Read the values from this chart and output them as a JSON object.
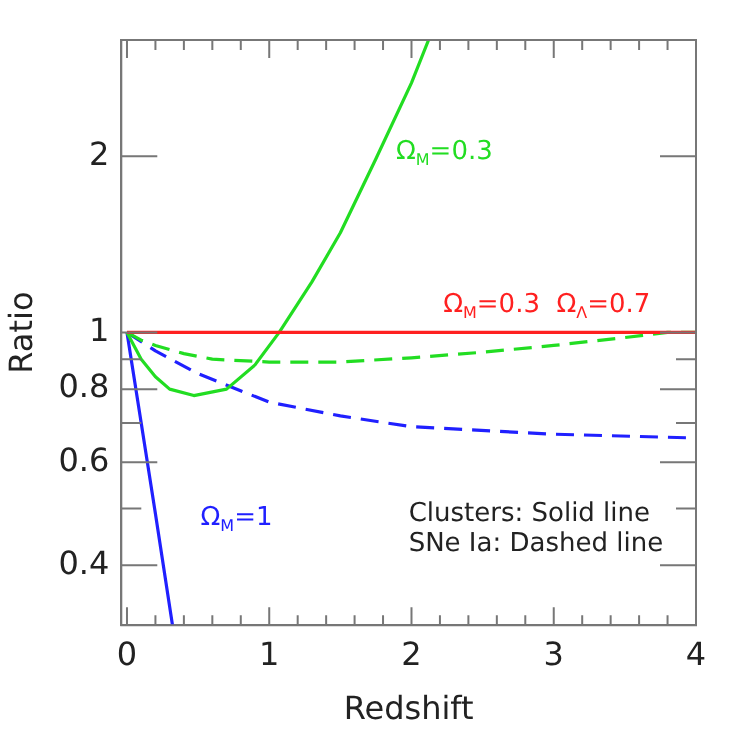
{
  "chart_data": {
    "type": "line",
    "xlabel": "Redshift",
    "ylabel": "Ratio",
    "log": "y",
    "grid": false,
    "legend": false,
    "marker": "none",
    "xlim": [
      -0.04,
      4
    ],
    "ylim": [
      0.316,
      3.16
    ],
    "xticks": [
      0,
      {
        "value": 0.2,
        "label": null
      },
      {
        "value": 0.4,
        "label": null
      },
      {
        "value": 0.6,
        "label": null
      },
      {
        "value": 0.8,
        "label": null
      },
      1,
      {
        "value": 1.2,
        "label": null
      },
      {
        "value": 1.4,
        "label": null
      },
      {
        "value": 1.6,
        "label": null
      },
      {
        "value": 1.8,
        "label": null
      },
      2,
      {
        "value": 2.2,
        "label": null
      },
      {
        "value": 2.4,
        "label": null
      },
      {
        "value": 2.6,
        "label": null
      },
      {
        "value": 2.8,
        "label": null
      },
      3,
      {
        "value": 3.2,
        "label": null
      },
      {
        "value": 3.4,
        "label": null
      },
      {
        "value": 3.6,
        "label": null
      },
      {
        "value": 3.8,
        "label": null
      },
      4
    ],
    "yticks": [
      0.4,
      {
        "value": 0.5,
        "label": null
      },
      0.6,
      {
        "value": 0.7,
        "label": null
      },
      0.8,
      {
        "value": 0.9,
        "label": null
      },
      1,
      2
    ],
    "series": [
      {
        "name": "Ω$_{M}$=0.3  Ω$_{Λ}$=0.7",
        "color": "#ff2020",
        "line_style": "solid",
        "x": [
          0,
          4
        ],
        "values": [
          1,
          1
        ]
      },
      {
        "name": "Ω$_{M}$=0.3",
        "color": "#22dd22",
        "line_style": "solid",
        "x": [
          0,
          0.1,
          0.2,
          0.3,
          0.47,
          0.7,
          0.9,
          1.07,
          1.3,
          1.5,
          1.75,
          2,
          2.12
        ],
        "values": [
          1,
          0.9,
          0.84,
          0.8,
          0.78,
          0.8,
          0.88,
          1,
          1.22,
          1.48,
          1.98,
          2.67,
          3.16
        ]
      },
      {
        "color": "#22dd22",
        "line_style": "dashed",
        "x": [
          0,
          0.1,
          0.2,
          0.4,
          0.6,
          1,
          1.5,
          2,
          2.5,
          3,
          3.5,
          3.8,
          4
        ],
        "values": [
          1,
          0.97,
          0.95,
          0.92,
          0.9,
          0.89,
          0.89,
          0.905,
          0.925,
          0.95,
          0.98,
          1,
          1
        ]
      },
      {
        "color": "#2020ff",
        "line_style": "dashed",
        "x": [
          0,
          0.2,
          0.5,
          1,
          1.5,
          2,
          3,
          4
        ],
        "values": [
          1,
          0.93,
          0.85,
          0.76,
          0.72,
          0.69,
          0.67,
          0.66
        ]
      },
      {
        "name": "Ω$_{M}$=1",
        "color": "#2020ff",
        "line_style": "solid",
        "x": [
          0,
          0.1,
          0.2,
          0.32
        ],
        "values": [
          1,
          0.7,
          0.49,
          0.316
        ]
      }
    ],
    "annotations": [
      "Clusters: Solid line",
      "SNe Ia: Dashed line"
    ]
  }
}
